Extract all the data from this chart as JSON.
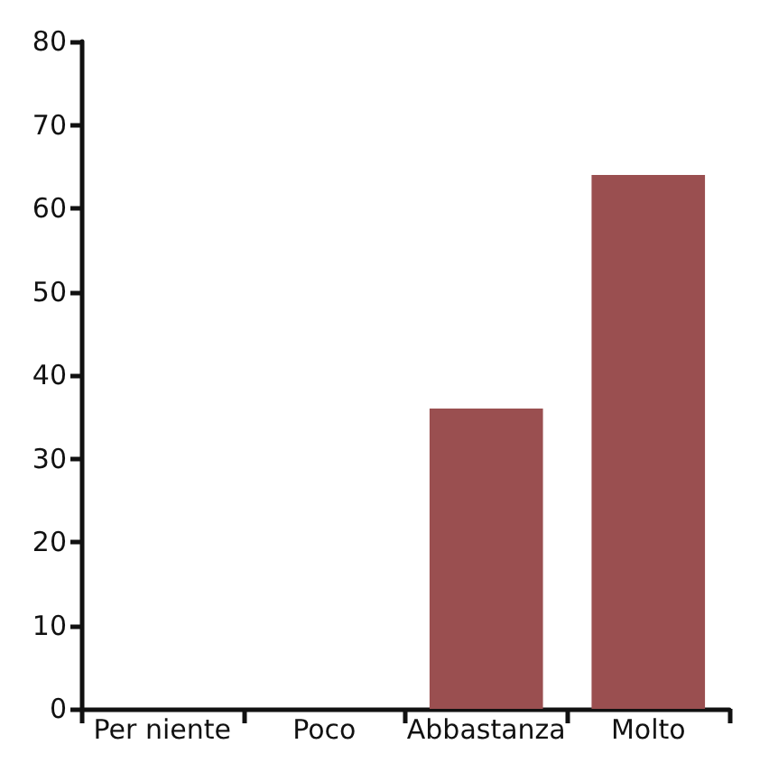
{
  "chart_data": {
    "type": "bar",
    "categories": [
      "Per niente",
      "Poco",
      "Abbastanza",
      "Molto"
    ],
    "values": [
      0,
      0,
      36,
      64
    ],
    "color": "#9a4f50",
    "ylim": [
      0,
      80
    ],
    "yticks": [
      0,
      10,
      20,
      30,
      40,
      50,
      60,
      70,
      80
    ],
    "grid": false
  }
}
